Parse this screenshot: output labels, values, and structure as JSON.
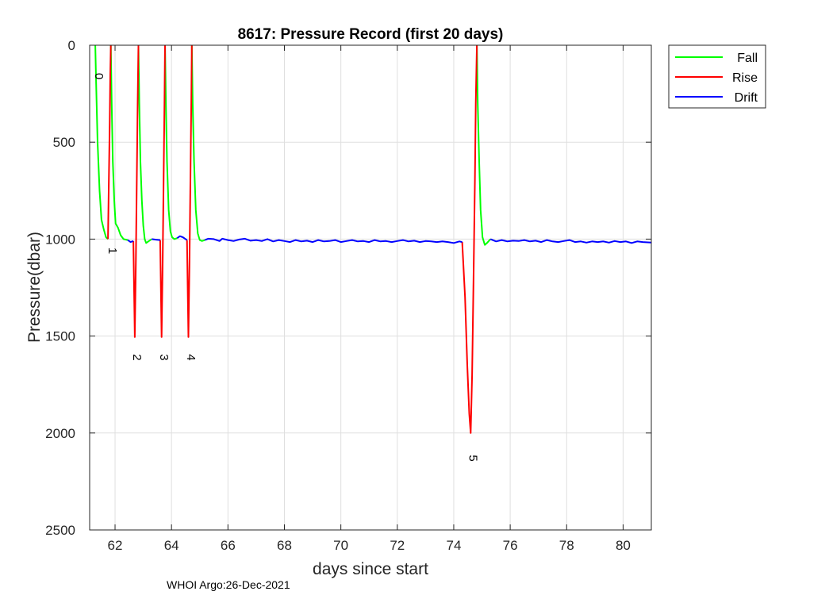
{
  "chart_data": {
    "type": "line",
    "title": "8617: Pressure Record (first 20 days)",
    "xlabel": "days since start",
    "ylabel": "Pressure(dbar)",
    "xlim": [
      61.1,
      81.0
    ],
    "ylim": [
      0,
      2500
    ],
    "y_reversed": true,
    "xticks": [
      62,
      64,
      66,
      68,
      70,
      72,
      74,
      76,
      78,
      80
    ],
    "yticks": [
      0,
      500,
      1000,
      1500,
      2000,
      2500
    ],
    "grid": true,
    "legend_position": "outside-top-right",
    "series": [
      {
        "name": "Fall",
        "color": "#00ff00",
        "segments": [
          [
            [
              61.3,
              0
            ],
            [
              61.33,
              200
            ],
            [
              61.38,
              500
            ],
            [
              61.45,
              750
            ],
            [
              61.52,
              900
            ],
            [
              61.6,
              950
            ],
            [
              61.68,
              990
            ],
            [
              61.75,
              1000
            ]
          ],
          [
            [
              61.85,
              0
            ],
            [
              61.88,
              300
            ],
            [
              61.92,
              600
            ],
            [
              61.97,
              800
            ],
            [
              62.02,
              920
            ],
            [
              62.1,
              940
            ],
            [
              62.2,
              980
            ],
            [
              62.3,
              1000
            ],
            [
              62.45,
              1005
            ]
          ],
          [
            [
              62.83,
              0
            ],
            [
              62.86,
              300
            ],
            [
              62.9,
              600
            ],
            [
              62.95,
              800
            ],
            [
              63.0,
              930
            ],
            [
              63.05,
              1000
            ],
            [
              63.1,
              1020
            ],
            [
              63.2,
              1010
            ],
            [
              63.3,
              1000
            ]
          ],
          [
            [
              63.77,
              0
            ],
            [
              63.8,
              300
            ],
            [
              63.84,
              600
            ],
            [
              63.9,
              850
            ],
            [
              63.96,
              960
            ],
            [
              64.02,
              990
            ],
            [
              64.1,
              1000
            ],
            [
              64.2,
              995
            ]
          ],
          [
            [
              64.72,
              0
            ],
            [
              64.75,
              300
            ],
            [
              64.8,
              600
            ],
            [
              64.86,
              850
            ],
            [
              64.93,
              970
            ],
            [
              65.0,
              1005
            ],
            [
              65.08,
              1010
            ],
            [
              65.18,
              1005
            ]
          ],
          [
            [
              74.82,
              0
            ],
            [
              74.85,
              300
            ],
            [
              74.9,
              600
            ],
            [
              74.95,
              850
            ],
            [
              75.02,
              990
            ],
            [
              75.1,
              1030
            ],
            [
              75.18,
              1020
            ],
            [
              75.3,
              1000
            ]
          ]
        ]
      },
      {
        "name": "Rise",
        "color": "#ff0000",
        "segments": [
          [
            [
              61.75,
              1000
            ],
            [
              61.78,
              700
            ],
            [
              61.81,
              400
            ],
            [
              61.83,
              150
            ],
            [
              61.85,
              0
            ]
          ],
          [
            [
              62.65,
              1010
            ],
            [
              62.7,
              1505
            ],
            [
              62.74,
              1100
            ],
            [
              62.77,
              700
            ],
            [
              62.8,
              300
            ],
            [
              62.83,
              0
            ]
          ],
          [
            [
              63.6,
              1005
            ],
            [
              63.65,
              1505
            ],
            [
              63.69,
              1100
            ],
            [
              63.72,
              700
            ],
            [
              63.75,
              300
            ],
            [
              63.77,
              0
            ]
          ],
          [
            [
              64.55,
              1005
            ],
            [
              64.6,
              1505
            ],
            [
              64.64,
              1100
            ],
            [
              64.67,
              700
            ],
            [
              64.7,
              300
            ],
            [
              64.72,
              0
            ]
          ],
          [
            [
              74.3,
              1015
            ],
            [
              74.4,
              1300
            ],
            [
              74.48,
              1650
            ],
            [
              74.55,
              1900
            ],
            [
              74.6,
              2000
            ],
            [
              74.65,
              1700
            ],
            [
              74.7,
              1200
            ],
            [
              74.75,
              700
            ],
            [
              74.78,
              300
            ],
            [
              74.82,
              0
            ]
          ]
        ]
      },
      {
        "name": "Drift",
        "color": "#0000ff",
        "segments": [
          [
            [
              62.45,
              1005
            ],
            [
              62.55,
              1015
            ],
            [
              62.65,
              1010
            ]
          ],
          [
            [
              63.3,
              1000
            ],
            [
              63.45,
              1003
            ],
            [
              63.6,
              1005
            ]
          ],
          [
            [
              64.2,
              995
            ],
            [
              64.3,
              985
            ],
            [
              64.4,
              990
            ],
            [
              64.5,
              1000
            ],
            [
              64.55,
              1005
            ]
          ],
          [
            [
              65.18,
              1005
            ],
            [
              65.3,
              998
            ],
            [
              65.5,
              1000
            ],
            [
              65.7,
              1010
            ],
            [
              65.8,
              998
            ],
            [
              66.0,
              1005
            ],
            [
              66.2,
              1010
            ],
            [
              66.4,
              1002
            ],
            [
              66.6,
              998
            ],
            [
              66.8,
              1008
            ],
            [
              67.0,
              1005
            ],
            [
              67.2,
              1010
            ],
            [
              67.4,
              1000
            ],
            [
              67.6,
              1012
            ],
            [
              67.8,
              1005
            ],
            [
              68.0,
              1010
            ],
            [
              68.2,
              1015
            ],
            [
              68.4,
              1005
            ],
            [
              68.6,
              1012
            ],
            [
              68.8,
              1008
            ],
            [
              69.0,
              1015
            ],
            [
              69.2,
              1005
            ],
            [
              69.4,
              1012
            ],
            [
              69.6,
              1010
            ],
            [
              69.8,
              1005
            ],
            [
              70.0,
              1015
            ],
            [
              70.2,
              1010
            ],
            [
              70.4,
              1005
            ],
            [
              70.6,
              1012
            ],
            [
              70.8,
              1010
            ],
            [
              71.0,
              1015
            ],
            [
              71.2,
              1005
            ],
            [
              71.4,
              1012
            ],
            [
              71.6,
              1010
            ],
            [
              71.8,
              1015
            ],
            [
              72.0,
              1010
            ],
            [
              72.2,
              1005
            ],
            [
              72.4,
              1012
            ],
            [
              72.6,
              1008
            ],
            [
              72.8,
              1015
            ],
            [
              73.0,
              1010
            ],
            [
              73.2,
              1012
            ],
            [
              73.4,
              1015
            ],
            [
              73.6,
              1012
            ],
            [
              73.8,
              1015
            ],
            [
              74.0,
              1020
            ],
            [
              74.2,
              1012
            ],
            [
              74.3,
              1015
            ]
          ],
          [
            [
              75.3,
              1000
            ],
            [
              75.5,
              1012
            ],
            [
              75.7,
              1005
            ],
            [
              75.9,
              1012
            ],
            [
              76.1,
              1008
            ],
            [
              76.3,
              1010
            ],
            [
              76.5,
              1005
            ],
            [
              76.7,
              1012
            ],
            [
              76.9,
              1008
            ],
            [
              77.1,
              1015
            ],
            [
              77.3,
              1005
            ],
            [
              77.5,
              1012
            ],
            [
              77.7,
              1015
            ],
            [
              77.9,
              1010
            ],
            [
              78.1,
              1005
            ],
            [
              78.3,
              1015
            ],
            [
              78.5,
              1012
            ],
            [
              78.7,
              1018
            ],
            [
              78.9,
              1012
            ],
            [
              79.1,
              1015
            ],
            [
              79.3,
              1012
            ],
            [
              79.5,
              1018
            ],
            [
              79.7,
              1010
            ],
            [
              79.9,
              1015
            ],
            [
              80.1,
              1012
            ],
            [
              80.3,
              1020
            ],
            [
              80.5,
              1012
            ],
            [
              80.7,
              1015
            ],
            [
              81.0,
              1018
            ]
          ]
        ]
      }
    ],
    "annotations": [
      {
        "text": "0",
        "x": 61.3,
        "y": 160
      },
      {
        "text": "1",
        "x": 61.78,
        "y": 1060
      },
      {
        "text": "2",
        "x": 62.65,
        "y": 1610
      },
      {
        "text": "3",
        "x": 63.6,
        "y": 1610
      },
      {
        "text": "4",
        "x": 64.55,
        "y": 1610
      },
      {
        "text": "5",
        "x": 74.55,
        "y": 2130
      }
    ]
  },
  "footer": "WHOI Argo:26-Dec-2021"
}
